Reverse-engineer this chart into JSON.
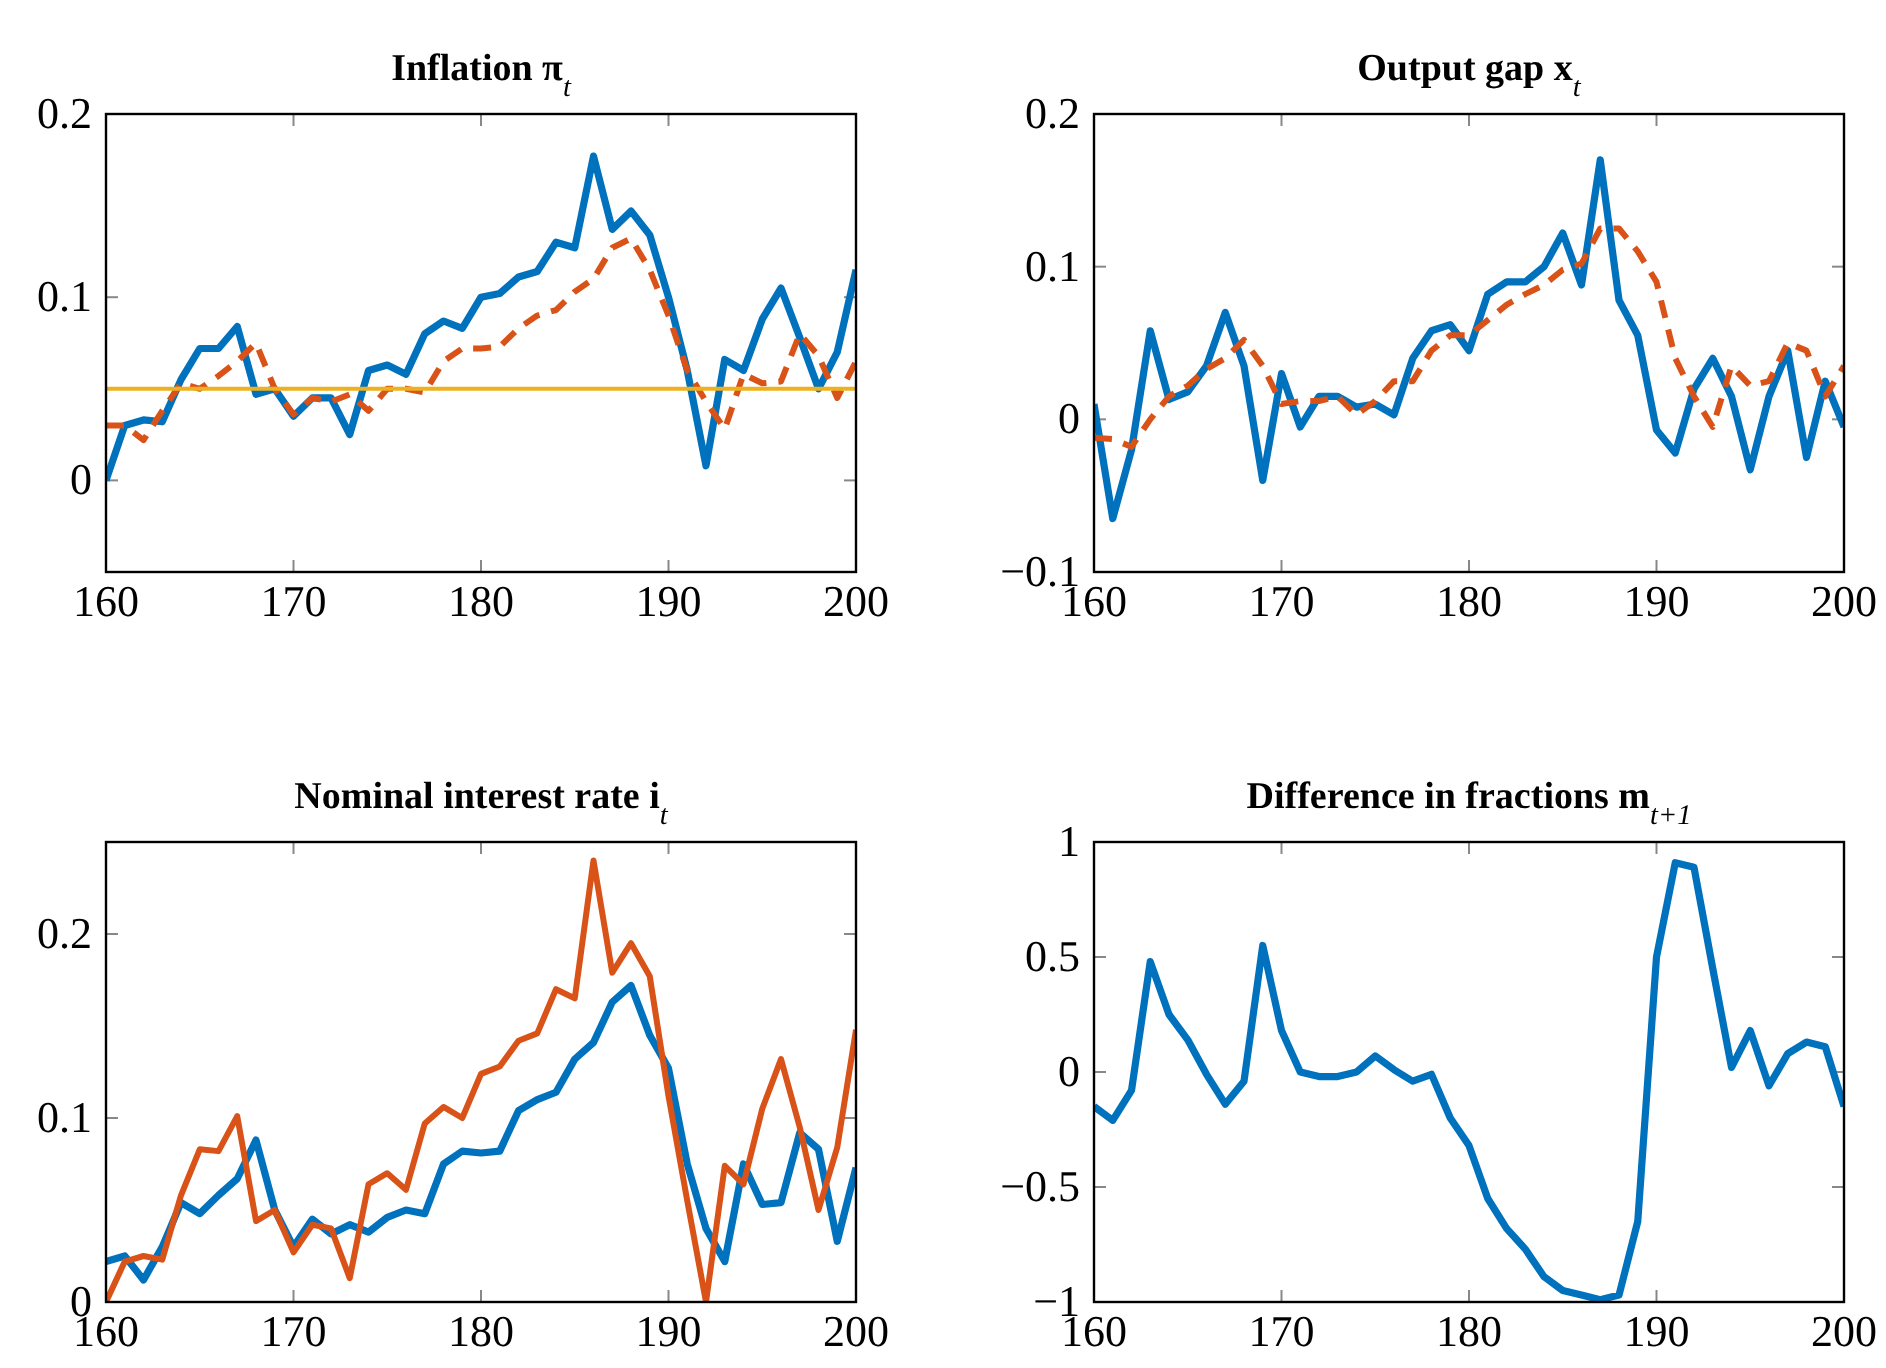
{
  "chart_data": [
    {
      "type": "line",
      "title": "Inflation π$_{t}$",
      "x": [
        160,
        161,
        162,
        163,
        164,
        165,
        166,
        167,
        168,
        169,
        170,
        171,
        172,
        173,
        174,
        175,
        176,
        177,
        178,
        179,
        180,
        181,
        182,
        183,
        184,
        185,
        186,
        187,
        188,
        189,
        190,
        191,
        192,
        193,
        194,
        195,
        196,
        197,
        198,
        199,
        200
      ],
      "xlim": [
        160,
        200
      ],
      "xticks": [
        160,
        170,
        180,
        190,
        200
      ],
      "ylim": [
        -0.05,
        0.2
      ],
      "yticks": [
        0,
        0.1,
        0.2
      ],
      "series": [
        {
          "color": "#0072bd",
          "line_style": "solid",
          "values": [
            0,
            0.03,
            0.033,
            0.032,
            0.055,
            0.072,
            0.072,
            0.084,
            0.047,
            0.05,
            0.035,
            0.045,
            0.045,
            0.025,
            0.06,
            0.063,
            0.058,
            0.08,
            0.087,
            0.083,
            0.1,
            0.102,
            0.111,
            0.114,
            0.13,
            0.127,
            0.177,
            0.137,
            0.147,
            0.134,
            0.1,
            0.06,
            0.008,
            0.066,
            0.06,
            0.088,
            0.105,
            0.078,
            0.05,
            0.07,
            0.115
          ]
        },
        {
          "color": "#d95319",
          "line_style": "dashed",
          "values": [
            0.03,
            0.03,
            0.022,
            0.038,
            0.053,
            0.05,
            0.057,
            0.065,
            0.075,
            0.05,
            0.036,
            0.045,
            0.043,
            0.047,
            0.038,
            0.05,
            0.05,
            0.048,
            0.065,
            0.072,
            0.072,
            0.073,
            0.083,
            0.09,
            0.093,
            0.103,
            0.11,
            0.127,
            0.132,
            0.115,
            0.09,
            0.06,
            0.043,
            0.028,
            0.058,
            0.053,
            0.054,
            0.08,
            0.068,
            0.045,
            0.065
          ]
        }
      ],
      "ref_lines": [
        {
          "axis": "y",
          "value": 0.05,
          "color": "#edb120"
        }
      ]
    },
    {
      "type": "line",
      "title": "Output gap x$_{t}$",
      "x": [
        160,
        161,
        162,
        163,
        164,
        165,
        166,
        167,
        168,
        169,
        170,
        171,
        172,
        173,
        174,
        175,
        176,
        177,
        178,
        179,
        180,
        181,
        182,
        183,
        184,
        185,
        186,
        187,
        188,
        189,
        190,
        191,
        192,
        193,
        194,
        195,
        196,
        197,
        198,
        199,
        200
      ],
      "xlim": [
        160,
        200
      ],
      "xticks": [
        160,
        170,
        180,
        190,
        200
      ],
      "ylim": [
        -0.1,
        0.2
      ],
      "yticks": [
        -0.1,
        0,
        0.1,
        0.2
      ],
      "series": [
        {
          "color": "#0072bd",
          "line_style": "solid",
          "values": [
            0.01,
            -0.065,
            -0.02,
            0.058,
            0.013,
            0.018,
            0.035,
            0.07,
            0.035,
            -0.04,
            0.03,
            -0.005,
            0.015,
            0.015,
            0.008,
            0.01,
            0.003,
            0.04,
            0.058,
            0.062,
            0.045,
            0.082,
            0.09,
            0.09,
            0.1,
            0.122,
            0.088,
            0.17,
            0.078,
            0.055,
            -0.007,
            -0.022,
            0.02,
            0.04,
            0.015,
            -0.033,
            0.015,
            0.045,
            -0.025,
            0.025,
            -0.005
          ]
        },
        {
          "color": "#d95319",
          "line_style": "dashed",
          "values": [
            -0.012,
            -0.013,
            -0.018,
            0,
            0.015,
            0.022,
            0.033,
            0.04,
            0.052,
            0.035,
            0.01,
            0.012,
            0.012,
            0.015,
            0.003,
            0.012,
            0.025,
            0.025,
            0.045,
            0.055,
            0.055,
            0.065,
            0.075,
            0.082,
            0.088,
            0.098,
            0.102,
            0.125,
            0.125,
            0.11,
            0.09,
            0.04,
            0.015,
            -0.005,
            0.035,
            0.022,
            0.025,
            0.05,
            0.045,
            0.015,
            0.035
          ]
        }
      ]
    },
    {
      "type": "line",
      "title": "Nominal interest rate i$_{t}$",
      "x": [
        160,
        161,
        162,
        163,
        164,
        165,
        166,
        167,
        168,
        169,
        170,
        171,
        172,
        173,
        174,
        175,
        176,
        177,
        178,
        179,
        180,
        181,
        182,
        183,
        184,
        185,
        186,
        187,
        188,
        189,
        190,
        191,
        192,
        193,
        194,
        195,
        196,
        197,
        198,
        199,
        200
      ],
      "xlim": [
        160,
        200
      ],
      "xticks": [
        160,
        170,
        180,
        190,
        200
      ],
      "ylim": [
        0,
        0.25
      ],
      "yticks": [
        0,
        0.1,
        0.2
      ],
      "series": [
        {
          "color": "#0072bd",
          "line_style": "solid",
          "values": [
            0.022,
            0.025,
            0.012,
            0.03,
            0.054,
            0.048,
            0.058,
            0.067,
            0.088,
            0.05,
            0.03,
            0.045,
            0.037,
            0.042,
            0.038,
            0.046,
            0.05,
            0.048,
            0.075,
            0.082,
            0.081,
            0.082,
            0.104,
            0.11,
            0.114,
            0.132,
            0.141,
            0.163,
            0.172,
            0.145,
            0.127,
            0.075,
            0.04,
            0.022,
            0.075,
            0.053,
            0.054,
            0.092,
            0.083,
            0.033,
            0.073
          ]
        },
        {
          "color": "#d95319",
          "line_style": "solid",
          "values": [
            0,
            0.022,
            0.025,
            0.023,
            0.058,
            0.083,
            0.082,
            0.101,
            0.044,
            0.05,
            0.027,
            0.042,
            0.04,
            0.013,
            0.064,
            0.07,
            0.061,
            0.097,
            0.106,
            0.1,
            0.124,
            0.128,
            0.142,
            0.146,
            0.17,
            0.165,
            0.24,
            0.179,
            0.195,
            0.177,
            0.112,
            0.055,
            0,
            0.074,
            0.064,
            0.105,
            0.132,
            0.095,
            0.05,
            0.084,
            0.148
          ]
        }
      ]
    },
    {
      "type": "line",
      "title": "Difference in fractions m$_{t+1}$",
      "x": [
        160,
        161,
        162,
        163,
        164,
        165,
        166,
        167,
        168,
        169,
        170,
        171,
        172,
        173,
        174,
        175,
        176,
        177,
        178,
        179,
        180,
        181,
        182,
        183,
        184,
        185,
        186,
        187,
        188,
        189,
        190,
        191,
        192,
        193,
        194,
        195,
        196,
        197,
        198,
        199,
        200
      ],
      "xlim": [
        160,
        200
      ],
      "xticks": [
        160,
        170,
        180,
        190,
        200
      ],
      "ylim": [
        -1,
        1
      ],
      "yticks": [
        -1,
        -0.5,
        0,
        0.5,
        1
      ],
      "series": [
        {
          "color": "#0072bd",
          "line_style": "solid",
          "values": [
            -0.15,
            -0.21,
            -0.08,
            0.48,
            0.25,
            0.14,
            -0.01,
            -0.14,
            -0.04,
            0.55,
            0.18,
            0,
            -0.02,
            -0.02,
            0,
            0.07,
            0.01,
            -0.04,
            -0.01,
            -0.2,
            -0.32,
            -0.55,
            -0.68,
            -0.77,
            -0.89,
            -0.95,
            -0.97,
            -0.99,
            -0.97,
            -0.65,
            0.5,
            0.91,
            0.89,
            0.45,
            0.02,
            0.18,
            -0.06,
            0.08,
            0.13,
            0.11,
            -0.15
          ]
        }
      ]
    }
  ]
}
